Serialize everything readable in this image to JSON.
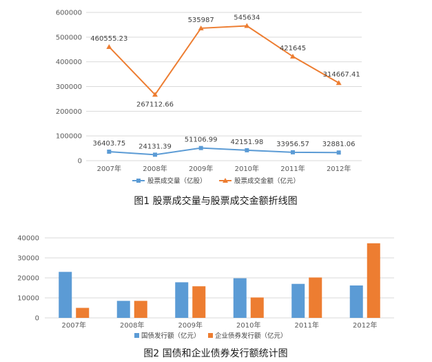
{
  "chart_data": [
    {
      "type": "line",
      "caption": "图1 股票成交量与股票成交金额折线图",
      "categories": [
        "2007年",
        "2008年",
        "2009年",
        "2010年",
        "2011年",
        "2012年"
      ],
      "ylim": [
        0,
        600000
      ],
      "yticks": [
        "0",
        "100000",
        "200000",
        "300000",
        "400000",
        "500000",
        "600000"
      ],
      "grid": true,
      "legend_position": "bottom",
      "series": [
        {
          "name": "股票成交量（亿股）",
          "color": "#5b9bd5",
          "marker": "square",
          "values": [
            36403.75,
            24131.39,
            51106.99,
            42151.98,
            33956.57,
            32881.06
          ],
          "labels": [
            "36403.75",
            "24131.39",
            "51106.99",
            "42151.98",
            "33956.57",
            "32881.06"
          ]
        },
        {
          "name": "股票成交金额（亿元）",
          "color": "#ed7d31",
          "marker": "triangle",
          "values": [
            460555.23,
            267112.66,
            535987,
            545634,
            421645,
            314667.41
          ],
          "labels": [
            "460555.23",
            "267112.66",
            "535987",
            "545634",
            "421645",
            "314667.41"
          ]
        }
      ]
    },
    {
      "type": "bar",
      "caption": "图2 国债和企业债券发行额统计图",
      "categories": [
        "2007年",
        "2008年",
        "2009年",
        "2010年",
        "2011年",
        "2012年"
      ],
      "ylim": [
        0,
        40000
      ],
      "yticks": [
        "0",
        "10000",
        "20000",
        "30000",
        "40000"
      ],
      "grid": true,
      "legend_position": "bottom",
      "series": [
        {
          "name": "国债发行额（亿元）",
          "color": "#5b9bd5",
          "values": [
            23000,
            8500,
            17800,
            19800,
            17000,
            16200
          ]
        },
        {
          "name": "企业债券发行额（亿元）",
          "color": "#ed7d31",
          "values": [
            5000,
            8500,
            15800,
            10200,
            20200,
            37300
          ]
        }
      ]
    }
  ]
}
